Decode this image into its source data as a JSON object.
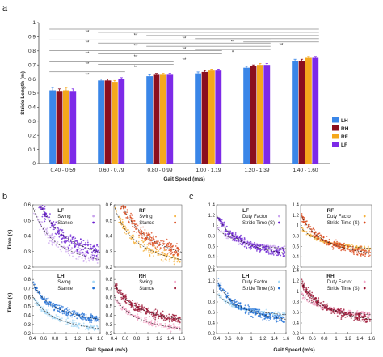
{
  "panels": {
    "a": "a",
    "b": "b",
    "c": "c"
  },
  "chart_data": [
    {
      "id": "a",
      "type": "bar",
      "ylabel": "Stride Length (m)",
      "xlabel": "Gait Speed (m/s)",
      "ylim": [
        0,
        1
      ],
      "yticks": [
        "0",
        "0.1",
        "0.2",
        "0.3",
        "0.4",
        "0.5",
        "0.6",
        "0.7",
        "0.8",
        "0.9",
        "1"
      ],
      "categories": [
        "0.40 - 0.59",
        "0.60 - 0.79",
        "0.80 - 0.99",
        "1.00 - 1.19",
        "1.20 - 1.39",
        "1.40 - 1.60"
      ],
      "series": [
        {
          "name": "LH",
          "color": "#3a86e8",
          "values": [
            0.52,
            0.59,
            0.62,
            0.64,
            0.68,
            0.73
          ],
          "errors": [
            0.02,
            0.01,
            0.01,
            0.01,
            0.01,
            0.01
          ]
        },
        {
          "name": "RH",
          "color": "#8b0e1e",
          "values": [
            0.51,
            0.59,
            0.63,
            0.65,
            0.69,
            0.73
          ],
          "errors": [
            0.02,
            0.01,
            0.01,
            0.01,
            0.01,
            0.01
          ]
        },
        {
          "name": "RF",
          "color": "#f5a81c",
          "values": [
            0.52,
            0.58,
            0.63,
            0.66,
            0.7,
            0.75
          ],
          "errors": [
            0.02,
            0.01,
            0.01,
            0.01,
            0.01,
            0.01
          ]
        },
        {
          "name": "LF",
          "color": "#7d2ae8",
          "values": [
            0.51,
            0.6,
            0.63,
            0.66,
            0.7,
            0.75
          ],
          "errors": [
            0.02,
            0.01,
            0.01,
            0.01,
            0.01,
            0.01
          ]
        }
      ],
      "legend_position": "right",
      "significance": [
        {
          "from": 0,
          "to": 5,
          "label": "**"
        },
        {
          "from": 0,
          "to": 4,
          "label": "**"
        },
        {
          "from": 0,
          "to": 3,
          "label": "**"
        },
        {
          "from": 0,
          "to": 2,
          "label": "**"
        },
        {
          "from": 0,
          "to": 1,
          "label": "**"
        },
        {
          "from": 1,
          "to": 5,
          "label": "**"
        },
        {
          "from": 1,
          "to": 4,
          "label": "**"
        },
        {
          "from": 1,
          "to": 3,
          "label": "**"
        },
        {
          "from": 1,
          "to": 2,
          "label": "**"
        },
        {
          "from": 2,
          "to": 5,
          "label": "**"
        },
        {
          "from": 2,
          "to": 4,
          "label": "**"
        },
        {
          "from": 2,
          "to": 3,
          "label": "**"
        },
        {
          "from": 3,
          "to": 5,
          "label": "**"
        },
        {
          "from": 3,
          "to": 4,
          "label": "*"
        },
        {
          "from": 4,
          "to": 5,
          "label": "**"
        }
      ]
    },
    {
      "id": "b",
      "type": "scatter",
      "ylabel": "Time (s)",
      "xlabel": "Gait Speed (m/s)",
      "xlim": [
        0.4,
        1.6
      ],
      "xticks": [
        "0.4",
        "0.6",
        "0.8",
        "1",
        "1.2",
        "1.4",
        "1.6"
      ],
      "top_ylim": [
        0.2,
        0.6
      ],
      "top_yticks": [
        "0.2",
        "0.3",
        "0.4",
        "0.5",
        "0.6"
      ],
      "bottom_ylim": [
        0.2,
        0.9
      ],
      "bottom_yticks": [
        "0.2",
        "0.3",
        "0.4",
        "0.5",
        "0.6",
        "0.7",
        "0.8"
      ],
      "subplots": [
        {
          "title": "LF",
          "labels": [
            "Swing",
            "Stance"
          ],
          "swing_color": "#c9a3ee",
          "stance_color": "#6a1fd0",
          "swing": {
            "a": 0.34,
            "b": -0.05
          },
          "stance": {
            "a": 0.25,
            "b": 0.14
          }
        },
        {
          "title": "RF",
          "labels": [
            "Swing",
            "Stance"
          ],
          "swing_color": "#f6b03a",
          "stance_color": "#d9471a",
          "swing": {
            "a": 0.34,
            "b": -0.05
          },
          "stance": {
            "a": 0.25,
            "b": 0.14
          }
        },
        {
          "title": "LH",
          "labels": [
            "Swing",
            "Stance"
          ],
          "swing_color": "#a6d8f5",
          "stance_color": "#1f6fd6",
          "swing": {
            "a": 0.36,
            "b": -0.05
          },
          "stance": {
            "a": 0.22,
            "b": 0.22
          }
        },
        {
          "title": "RH",
          "labels": [
            "Swing",
            "Stance"
          ],
          "swing_color": "#f3a3c4",
          "stance_color": "#9a1030",
          "swing": {
            "a": 0.36,
            "b": -0.05
          },
          "stance": {
            "a": 0.22,
            "b": 0.22
          }
        }
      ]
    },
    {
      "id": "c",
      "type": "scatter",
      "xlabel": "Gait Speed (m/s)",
      "xlim": [
        0.4,
        1.6
      ],
      "xticks": [
        "0.4",
        "0.6",
        "0.8",
        "1",
        "1.2",
        "1.4",
        "1.6"
      ],
      "ylim": [
        0.2,
        1.4
      ],
      "yticks": [
        "0.2",
        "0.4",
        "0.6",
        "0.8",
        "1",
        "1.2",
        "1.4"
      ],
      "subplots": [
        {
          "title": "LF",
          "labels": [
            "Duty Factor",
            "Stride Time (S)"
          ],
          "duty_color": "#c9a3ee",
          "stride_color": "#6a1fd0",
          "duty": {
            "a": 0.62,
            "b": -0.12
          },
          "stride": {
            "a": 0.4,
            "b": 0.34
          }
        },
        {
          "title": "RF",
          "labels": [
            "Duty Factor",
            "Stride Time (S)"
          ],
          "duty_color": "#f6b03a",
          "stride_color": "#d9471a",
          "duty": {
            "a": 0.62,
            "b": -0.12
          },
          "stride": {
            "a": 0.4,
            "b": 0.34
          }
        },
        {
          "title": "LH",
          "labels": [
            "Duty Factor",
            "Stride Time (S)"
          ],
          "duty_color": "#a6d8f5",
          "stride_color": "#1f6fd6",
          "duty": {
            "a": 0.62,
            "b": -0.12
          },
          "stride": {
            "a": 0.4,
            "b": 0.34
          }
        },
        {
          "title": "RH",
          "labels": [
            "Duty Factor",
            "Stride Time (S)"
          ],
          "duty_color": "#f3a3c4",
          "stride_color": "#9a1030",
          "duty": {
            "a": 0.62,
            "b": -0.12
          },
          "stride": {
            "a": 0.4,
            "b": 0.34
          }
        }
      ]
    }
  ]
}
